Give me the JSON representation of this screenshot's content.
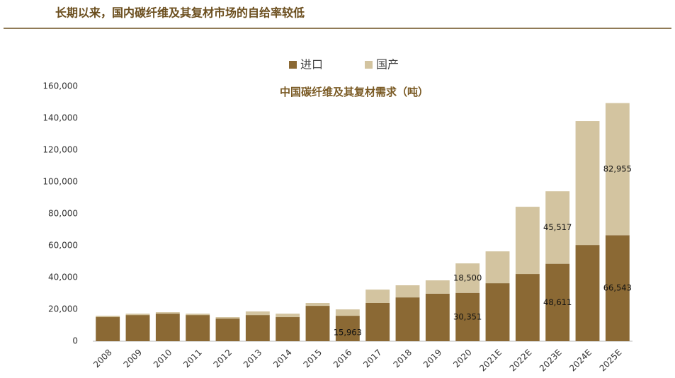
{
  "header": {
    "title": "长期以来，国内碳纤维及其复材市场的自给率较低"
  },
  "chart_data": {
    "type": "stacked-bar",
    "title": "中国碳纤维及其复材需求（吨）",
    "categories": [
      "2008",
      "2009",
      "2010",
      "2011",
      "2012",
      "2013",
      "2014",
      "2015",
      "2016",
      "2017",
      "2018",
      "2019",
      "2020",
      "2021E",
      "2022E",
      "2023E",
      "2024E",
      "2025E"
    ],
    "series": [
      {
        "name": "进口",
        "color": "#8b6934",
        "values": [
          15100,
          16400,
          17300,
          16400,
          14200,
          16400,
          15100,
          22200,
          15963,
          24000,
          27500,
          29800,
          30351,
          36400,
          42200,
          48611,
          60400,
          66543
        ],
        "value_labels": [
          null,
          null,
          null,
          null,
          null,
          null,
          null,
          null,
          "15,963",
          null,
          null,
          null,
          "30,351",
          null,
          null,
          "48,611",
          null,
          "66,543"
        ]
      },
      {
        "name": "国产",
        "color": "#d3c4a0",
        "values": [
          900,
          900,
          900,
          900,
          900,
          2300,
          2200,
          1800,
          4000,
          8400,
          7600,
          8400,
          18500,
          20000,
          42200,
          45517,
          77800,
          82955
        ],
        "value_labels": [
          null,
          null,
          null,
          null,
          null,
          null,
          null,
          null,
          null,
          null,
          null,
          null,
          "18,500",
          null,
          null,
          "45,517",
          null,
          "82,955"
        ]
      }
    ],
    "ylim": [
      0,
      160000
    ],
    "yticks": [
      0,
      {
        "value": 20000,
        "label": "20,000"
      },
      {
        "value": 40000,
        "label": "40,000"
      },
      {
        "value": 60000,
        "label": "60,000"
      },
      {
        "value": 80000,
        "label": "80,000"
      },
      {
        "value": 100000,
        "label": "100,000"
      },
      {
        "value": 120000,
        "label": "120,000"
      },
      {
        "value": 140000,
        "label": "140,000"
      },
      {
        "value": 160000,
        "label": "160,000"
      }
    ],
    "legend": "top"
  }
}
